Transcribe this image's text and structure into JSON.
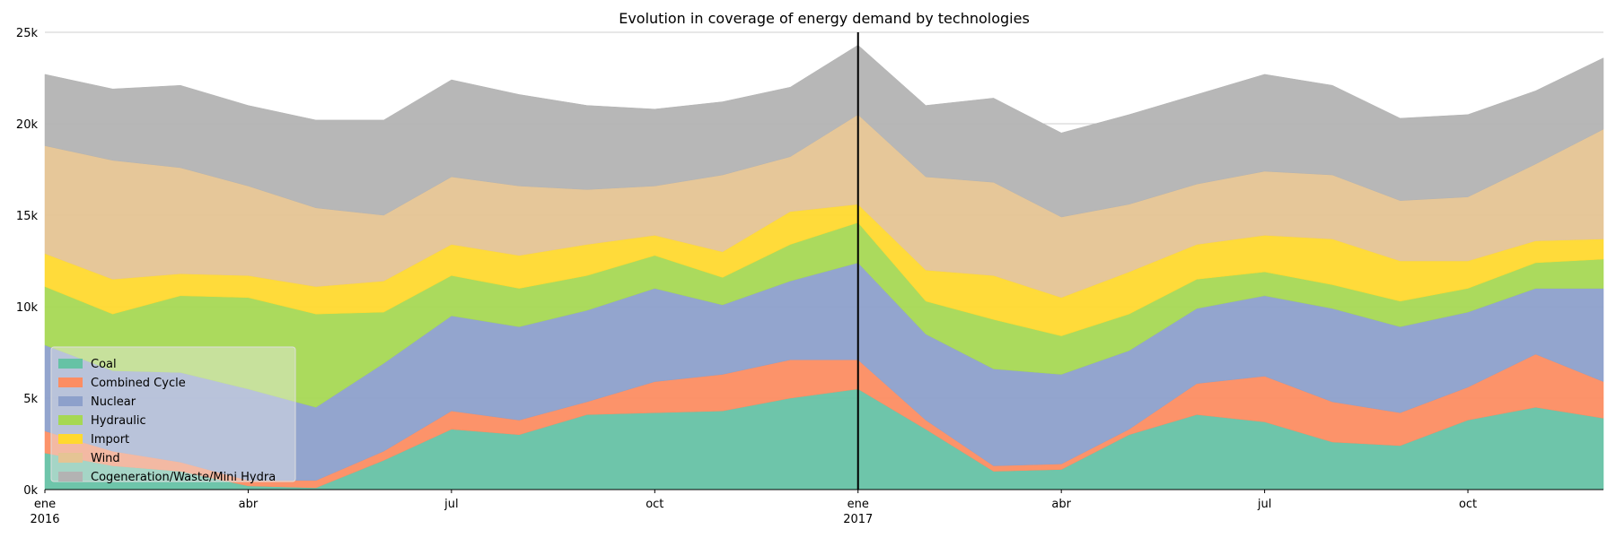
{
  "chart_data": {
    "type": "area",
    "title": "Evolution in coverage of energy demand by technologies",
    "xlabel": "",
    "ylabel": "",
    "x": [
      "2016-01",
      "2016-02",
      "2016-03",
      "2016-04",
      "2016-05",
      "2016-06",
      "2016-07",
      "2016-08",
      "2016-09",
      "2016-10",
      "2016-11",
      "2016-12",
      "2017-01",
      "2017-02",
      "2017-03",
      "2017-04",
      "2017-05",
      "2017-06",
      "2017-07",
      "2017-08",
      "2017-09",
      "2017-10",
      "2017-11",
      "2017-12"
    ],
    "ylim": [
      0,
      25000
    ],
    "y_ticks": [
      {
        "value": 0,
        "label": "0k"
      },
      {
        "value": 5000,
        "label": "5k"
      },
      {
        "value": 10000,
        "label": "10k"
      },
      {
        "value": 15000,
        "label": "15k"
      },
      {
        "value": 20000,
        "label": "20k"
      },
      {
        "value": 25000,
        "label": "25k"
      }
    ],
    "x_ticks": [
      {
        "date": "2016-01",
        "label": "ene",
        "year": "2016"
      },
      {
        "date": "2016-04",
        "label": "abr",
        "year": ""
      },
      {
        "date": "2016-07",
        "label": "jul",
        "year": ""
      },
      {
        "date": "2016-10",
        "label": "oct",
        "year": ""
      },
      {
        "date": "2017-01",
        "label": "ene",
        "year": "2017"
      },
      {
        "date": "2017-04",
        "label": "abr",
        "year": ""
      },
      {
        "date": "2017-07",
        "label": "jul",
        "year": ""
      },
      {
        "date": "2017-10",
        "label": "oct",
        "year": ""
      }
    ],
    "vline_date": "2017-01",
    "grid": "horizontal",
    "legend_position": "lower-left",
    "series": [
      {
        "name": "Coal",
        "color": "#66c2a5",
        "values": [
          2000,
          1300,
          1000,
          200,
          100,
          1600,
          3300,
          3000,
          4100,
          4200,
          4300,
          5000,
          5500,
          3300,
          1000,
          1100,
          3000,
          4100,
          3700,
          2600,
          2400,
          3800,
          4500,
          3900
        ]
      },
      {
        "name": "Combined Cycle",
        "color": "#fc8d62",
        "values": [
          1200,
          800,
          500,
          300,
          400,
          500,
          1000,
          800,
          700,
          1700,
          2000,
          2100,
          1600,
          500,
          300,
          300,
          300,
          1700,
          2500,
          2200,
          1800,
          1800,
          2900,
          2000
        ]
      },
      {
        "name": "Nuclear",
        "color": "#8da0cb",
        "values": [
          4700,
          4400,
          4900,
          5000,
          4000,
          4800,
          5200,
          5100,
          5000,
          5100,
          3800,
          4300,
          5300,
          4700,
          5300,
          4900,
          4300,
          4100,
          4400,
          5100,
          4700,
          4100,
          3600,
          5100
        ]
      },
      {
        "name": "Hydraulic",
        "color": "#a6d854",
        "values": [
          3200,
          3100,
          4200,
          5000,
          5100,
          2800,
          2200,
          2100,
          1900,
          1800,
          1500,
          2000,
          2200,
          1800,
          2700,
          2100,
          2000,
          1600,
          1300,
          1300,
          1400,
          1300,
          1400,
          1600
        ]
      },
      {
        "name": "Import",
        "color": "#ffd92f",
        "values": [
          1800,
          1900,
          1200,
          1200,
          1500,
          1700,
          1700,
          1800,
          1700,
          1100,
          1400,
          1800,
          1000,
          1700,
          2400,
          2100,
          2300,
          1900,
          2000,
          2500,
          2200,
          1500,
          1200,
          1100
        ]
      },
      {
        "name": "Wind",
        "color": "#e5c494",
        "values": [
          5900,
          6500,
          5800,
          4900,
          4300,
          3600,
          3700,
          3800,
          3000,
          2700,
          4200,
          3000,
          4900,
          5100,
          5100,
          4400,
          3700,
          3300,
          3500,
          3500,
          3300,
          3500,
          4200,
          6000
        ]
      },
      {
        "name": "Cogeneration/Waste/Mini Hydra",
        "color": "#b3b3b3",
        "values": [
          3900,
          3900,
          4500,
          4400,
          4800,
          5200,
          5300,
          5000,
          4600,
          4200,
          4000,
          3800,
          3800,
          3900,
          4600,
          4600,
          4900,
          4900,
          5300,
          4900,
          4500,
          4500,
          4000,
          3900
        ]
      }
    ]
  }
}
